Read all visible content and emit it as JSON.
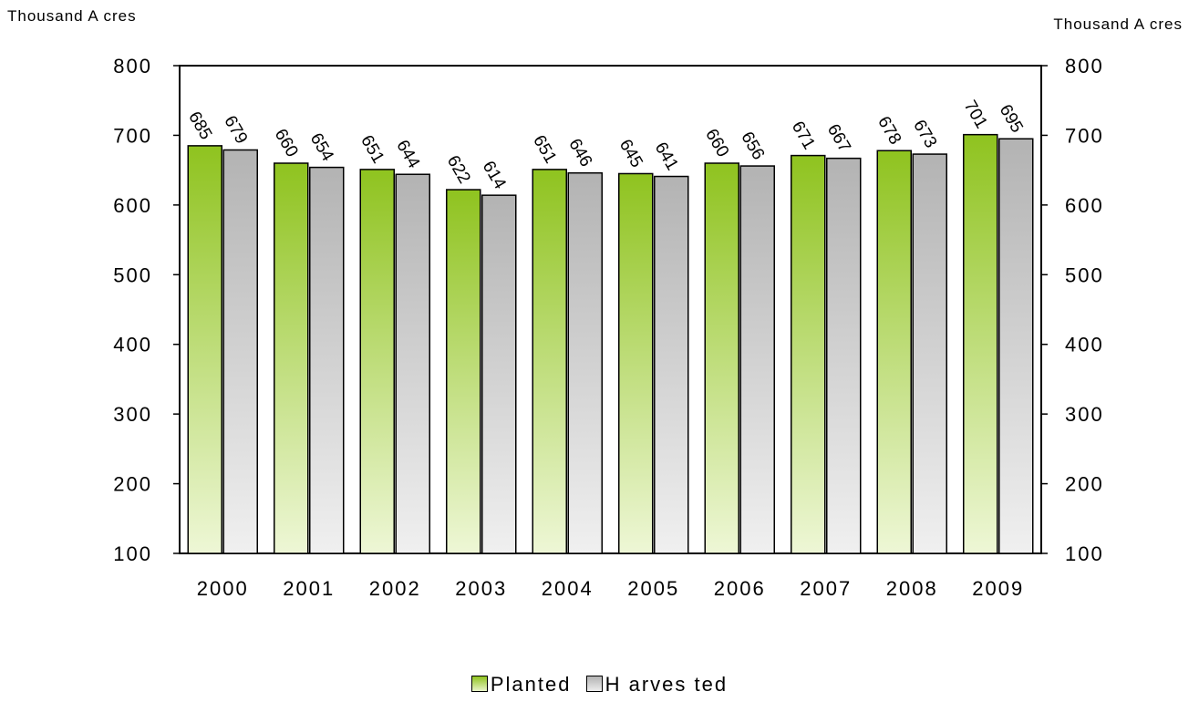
{
  "chart_data": {
    "type": "bar",
    "y_unit_left": "Thousand A cres",
    "y_unit_right": "Thousand A cres",
    "categories": [
      "2000",
      "2001",
      "2002",
      "2003",
      "2004",
      "2005",
      "2006",
      "2007",
      "2008",
      "2009"
    ],
    "series": [
      {
        "name": "Planted",
        "values": [
          685,
          660,
          651,
          622,
          651,
          645,
          660,
          671,
          678,
          701
        ],
        "color": "#8fc31f"
      },
      {
        "name": "Harvested",
        "values": [
          679,
          654,
          644,
          614,
          646,
          641,
          656,
          667,
          673,
          695
        ],
        "color": "#b3b3b3"
      }
    ],
    "ylim": [
      100,
      800
    ],
    "yticks": [
      100,
      200,
      300,
      400,
      500,
      600,
      700,
      800
    ],
    "data_labels": true,
    "grid": false,
    "legend_position": "bottom"
  },
  "legend": {
    "planted": "Planted",
    "harvested": "H arves ted"
  }
}
